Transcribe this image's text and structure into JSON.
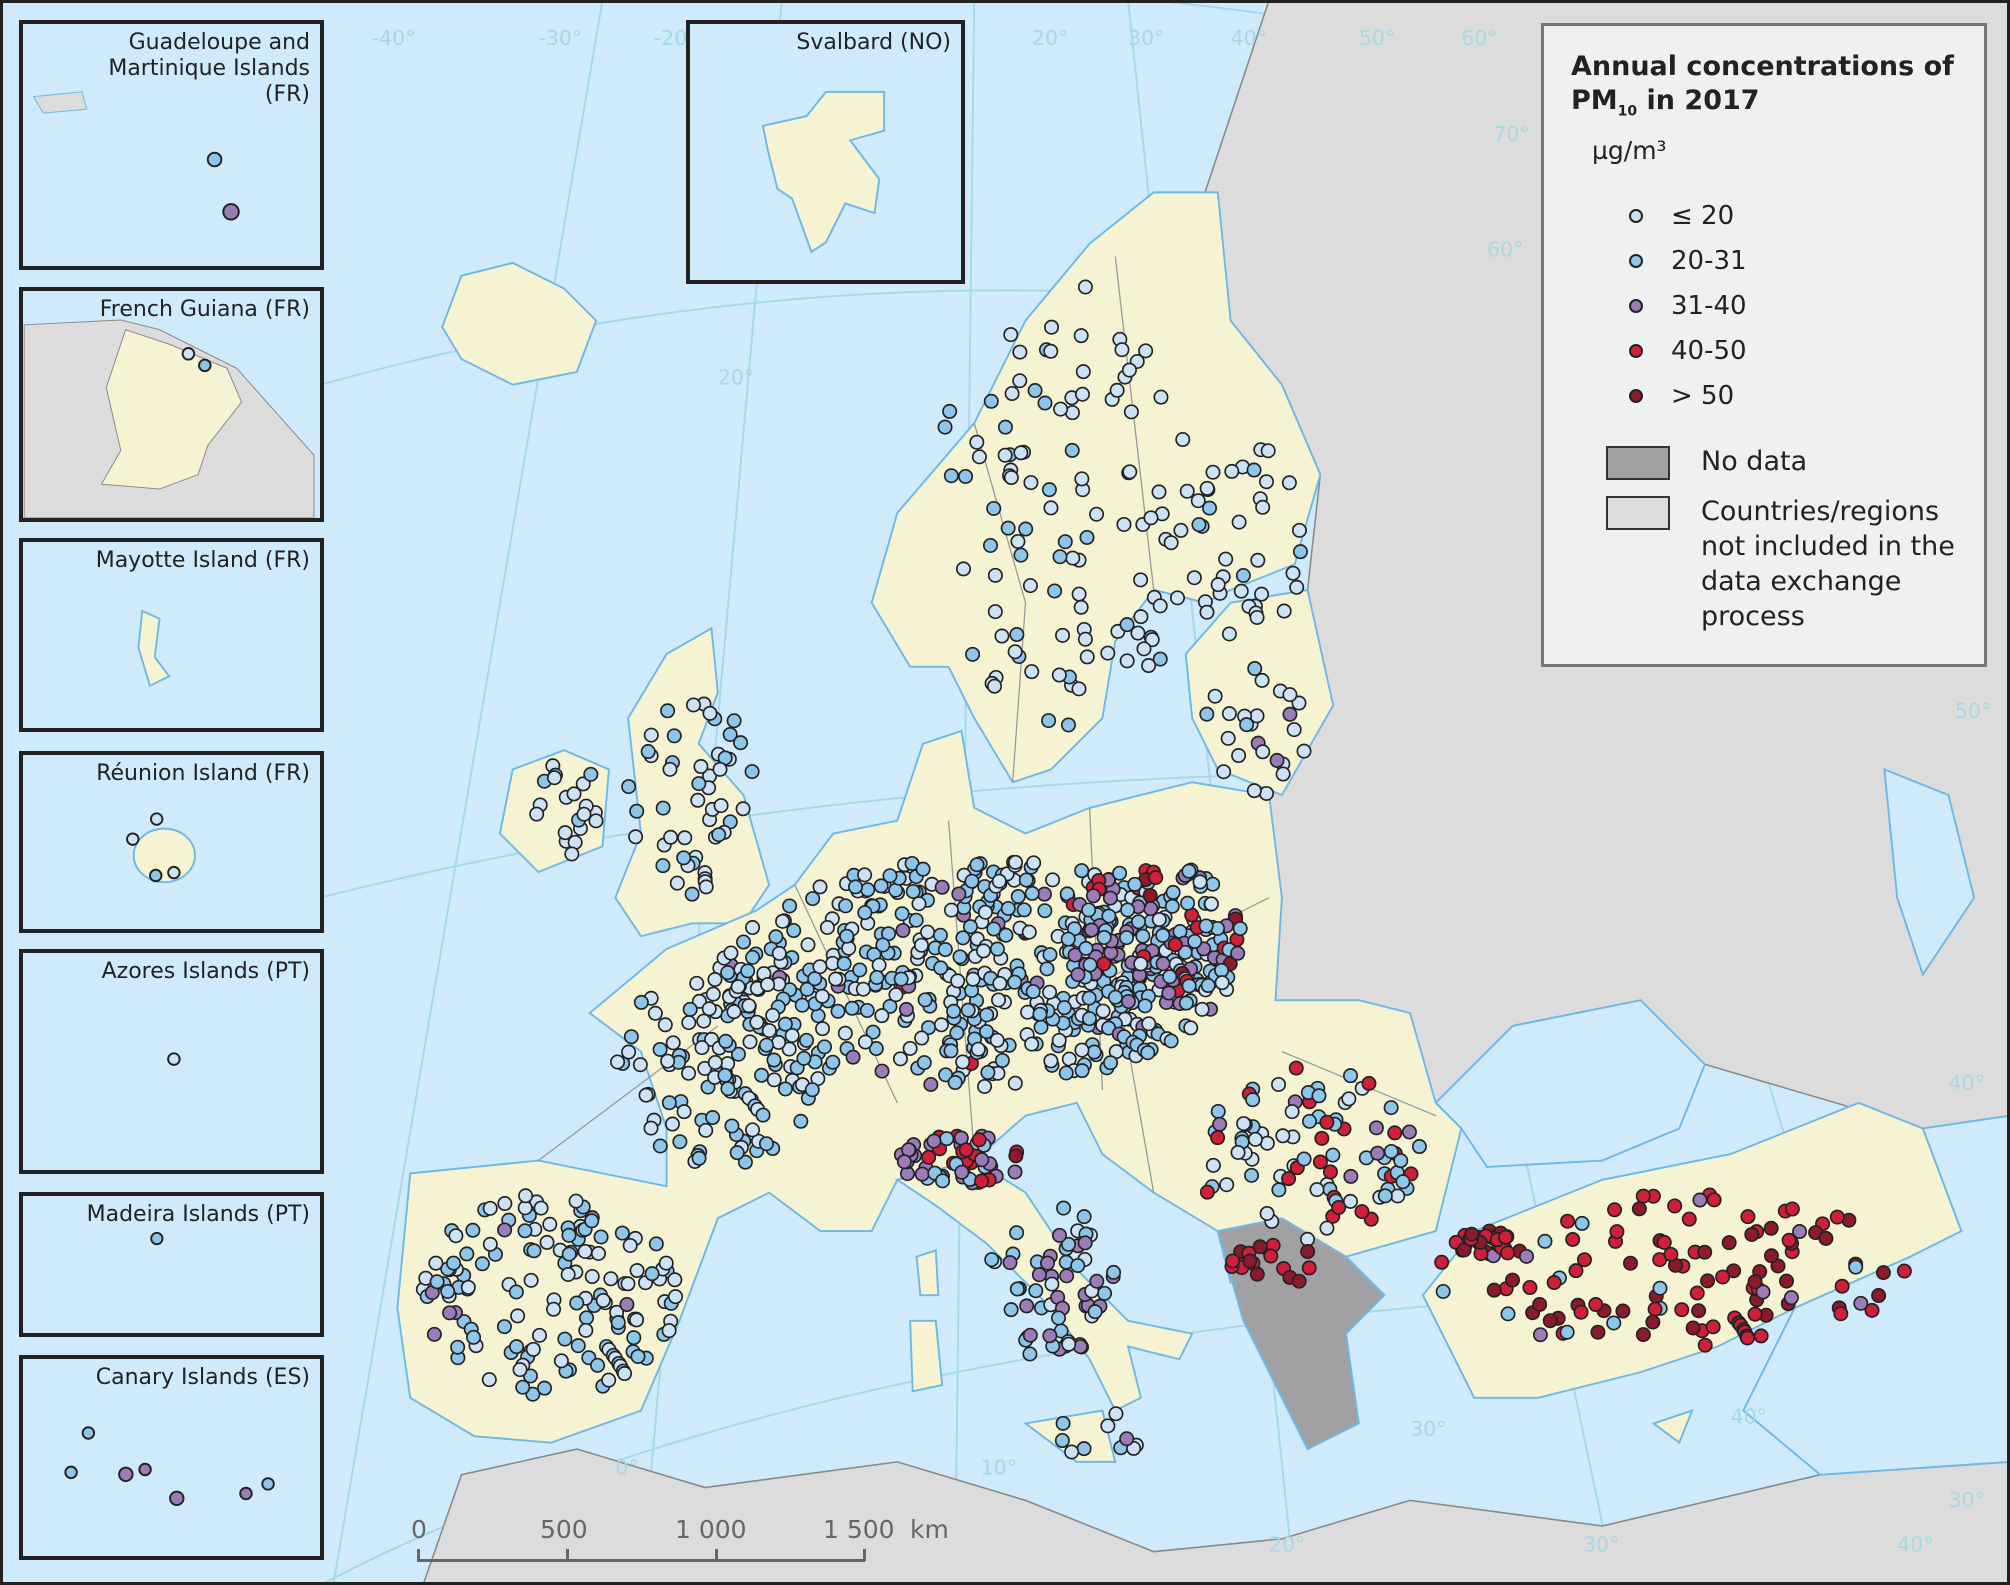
{
  "title_line1": "Annual concentrations of",
  "title_pm": "PM",
  "title_sub": "10",
  "title_rest": " in 2017",
  "unit": "µg/m³",
  "legend": {
    "classes": [
      {
        "label": "≤ 20",
        "color": "#cde3f5"
      },
      {
        "label": "20-31",
        "color": "#8ec5ea"
      },
      {
        "label": "31-40",
        "color": "#9b7cb9"
      },
      {
        "label": "40-50",
        "color": "#cf1f3a"
      },
      {
        "label": "> 50",
        "color": "#8a1a2c"
      }
    ],
    "no_data": {
      "label": "No data",
      "color": "#a1a1a4"
    },
    "not_included": {
      "label": "Countries/regions not included in the data exchange process",
      "color": "#dcdcdd"
    }
  },
  "colors": {
    "sea": "#cfeafb",
    "land": "#f5f3d2",
    "coast": "#6fb8e6",
    "graticule": "#a6d8e6"
  },
  "insets": [
    {
      "label": "Guadeloupe and Martinique Islands (FR)"
    },
    {
      "label": "French Guiana (FR)"
    },
    {
      "label": "Mayotte Island (FR)"
    },
    {
      "label": "Réunion Island (FR)"
    },
    {
      "label": "Azores Islands (PT)"
    },
    {
      "label": "Madeira Islands (PT)"
    },
    {
      "label": "Canary Islands (ES)"
    },
    {
      "label": "Svalbard (NO)"
    }
  ],
  "scale_bar": {
    "ticks": [
      "0",
      "500",
      "1 000",
      "1 500"
    ],
    "unit": "km"
  },
  "graticule_labels": [
    "-40°",
    "-30°",
    "-20°",
    "20°",
    "30°",
    "40°",
    "50°",
    "60°",
    "70°",
    "60°",
    "50°",
    "40°",
    "30°",
    "20°",
    "30°",
    "40°",
    "0°",
    "10°",
    "20°",
    "30°",
    "40°"
  ]
}
